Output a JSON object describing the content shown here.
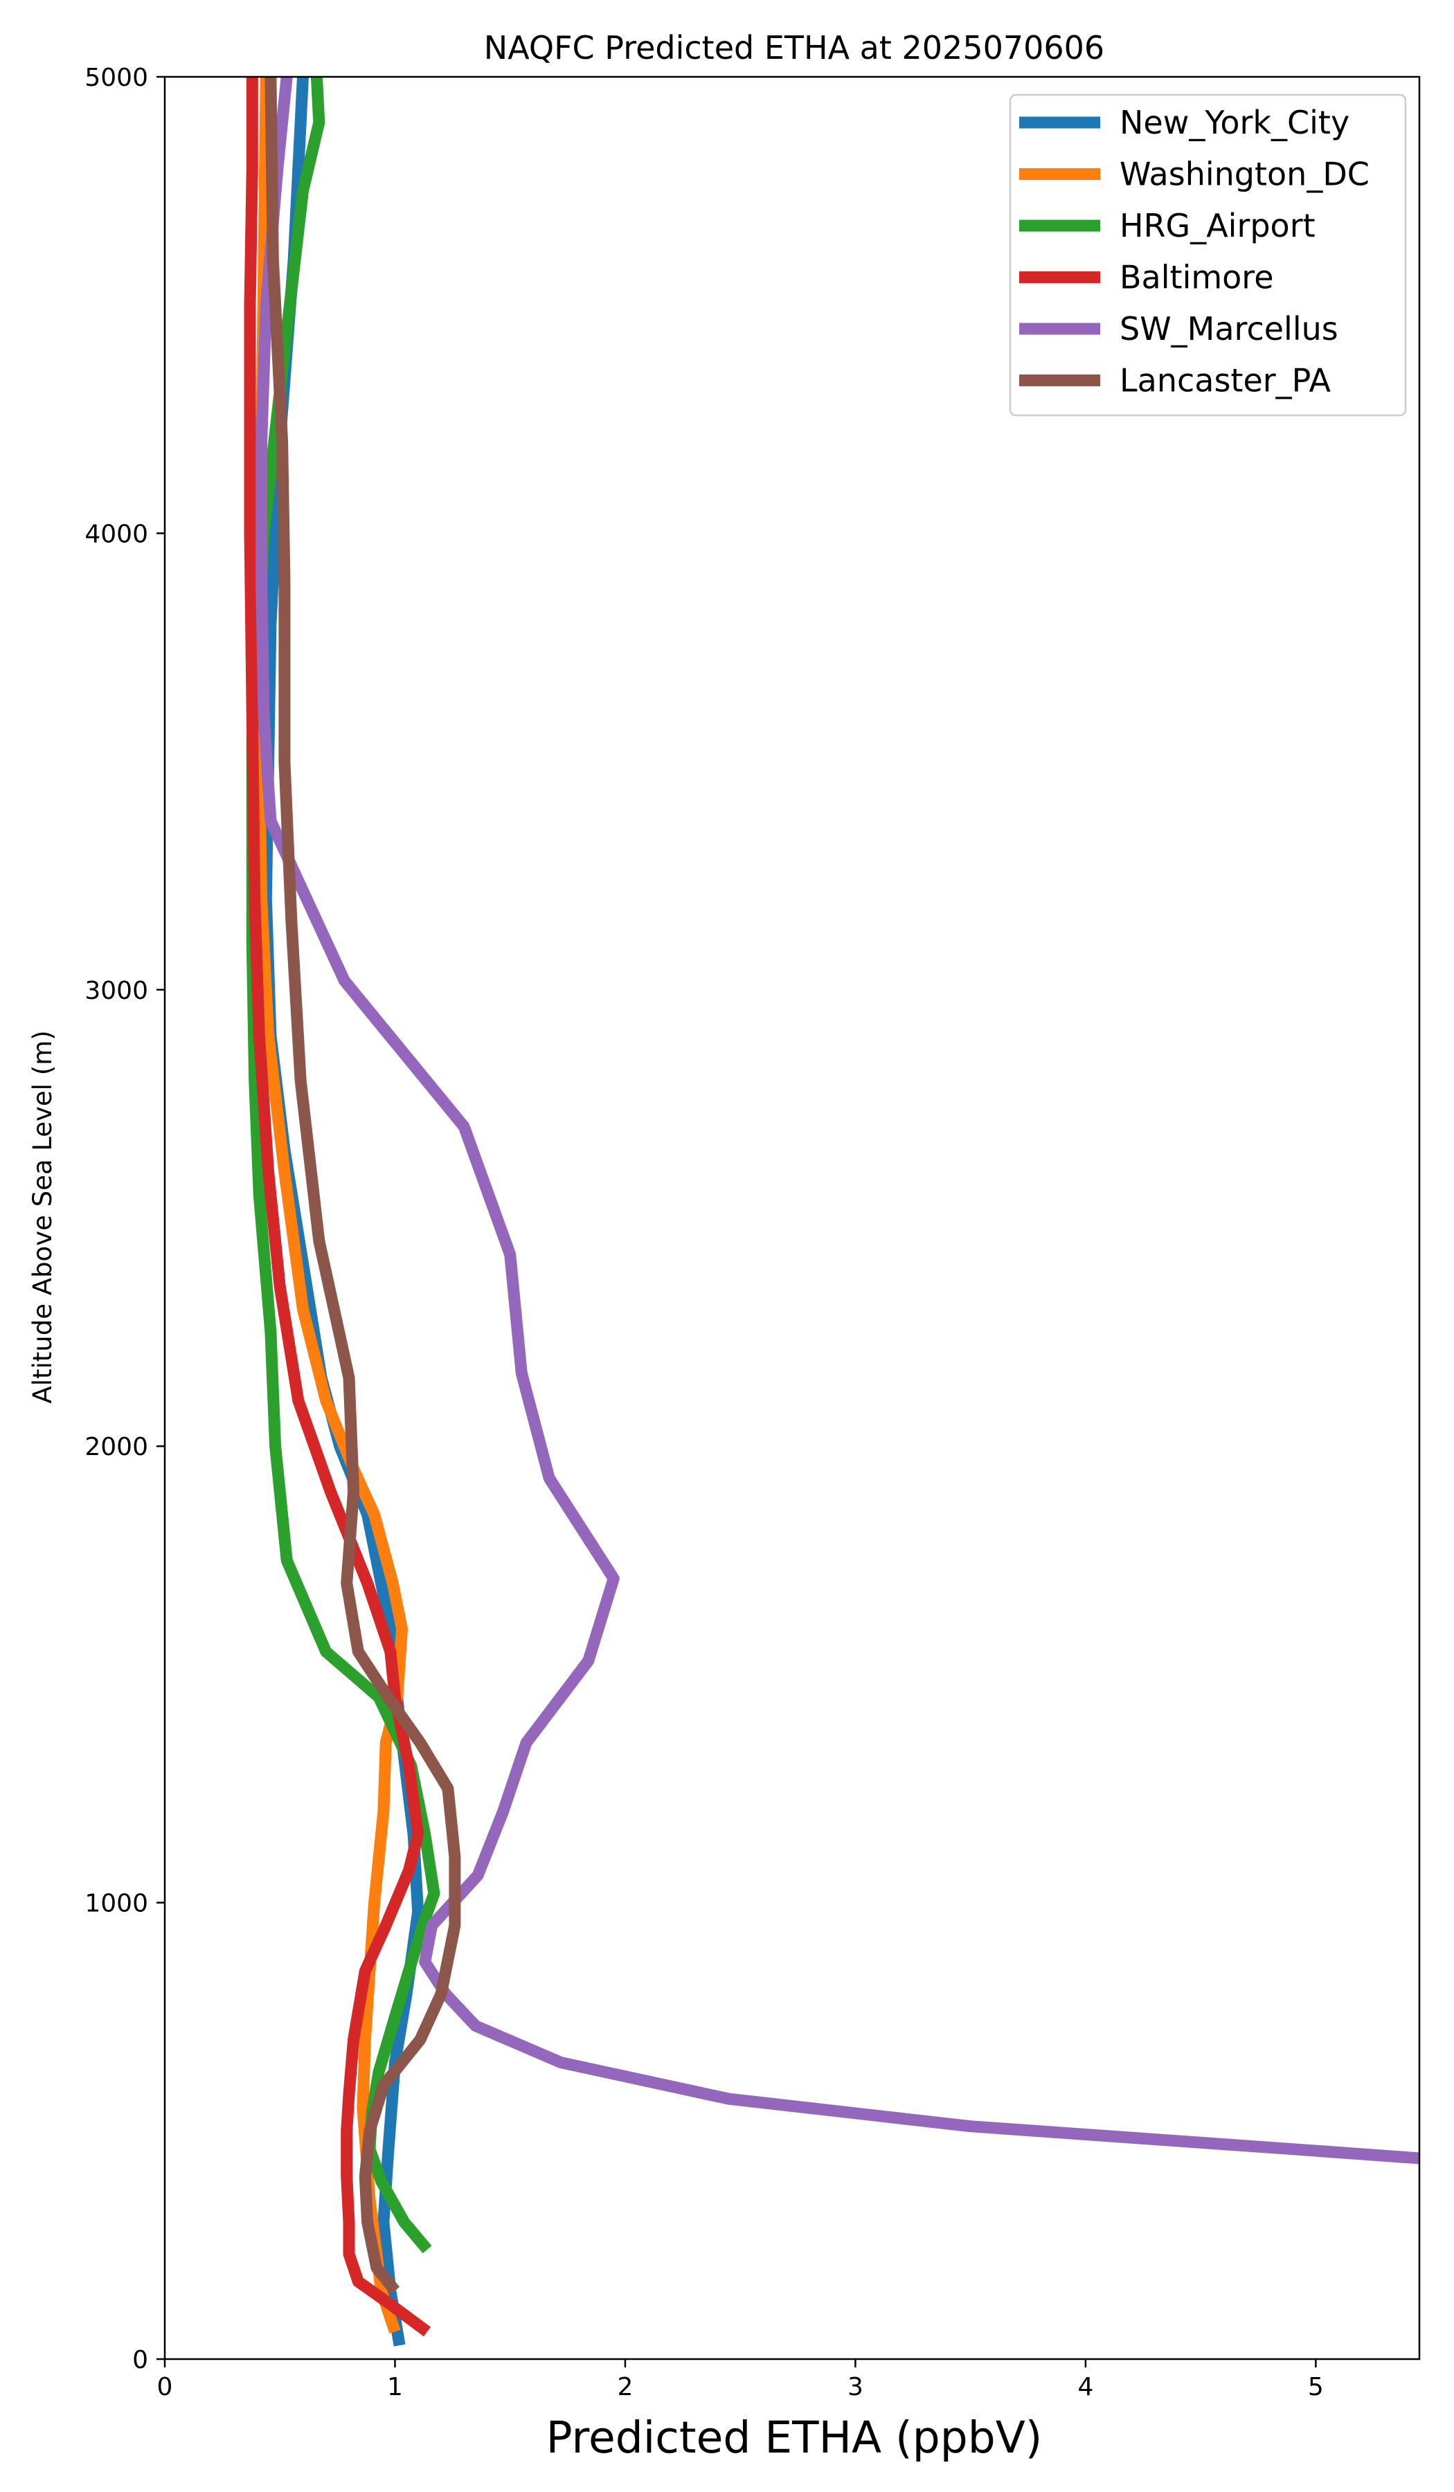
{
  "chart_data": {
    "type": "line",
    "title": "NAQFC Predicted ETHA at 2025070606",
    "xlabel": "Predicted ETHA (ppbV)",
    "ylabel": "Altitude Above Sea Level (m)",
    "xlim": [
      0,
      5.45
    ],
    "ylim": [
      0,
      5000
    ],
    "xticks": [
      0,
      1,
      2,
      3,
      4,
      5
    ],
    "yticks": [
      0,
      1000,
      2000,
      3000,
      4000,
      5000
    ],
    "grid": false,
    "legend_position": "top-right",
    "series": [
      {
        "name": "New_York_City",
        "color": "#1f77b4",
        "points": [
          [
            1.02,
            30
          ],
          [
            0.98,
            150
          ],
          [
            0.95,
            300
          ],
          [
            0.97,
            450
          ],
          [
            1.0,
            650
          ],
          [
            1.05,
            800
          ],
          [
            1.1,
            980
          ],
          [
            1.08,
            1150
          ],
          [
            1.02,
            1400
          ],
          [
            0.98,
            1600
          ],
          [
            0.88,
            1850
          ],
          [
            0.76,
            2000
          ],
          [
            0.68,
            2150
          ],
          [
            0.6,
            2400
          ],
          [
            0.52,
            2650
          ],
          [
            0.46,
            2900
          ],
          [
            0.44,
            3200
          ],
          [
            0.45,
            3500
          ],
          [
            0.46,
            3800
          ],
          [
            0.5,
            4200
          ],
          [
            0.56,
            4600
          ],
          [
            0.6,
            5000
          ]
        ]
      },
      {
        "name": "Washington_DC",
        "color": "#ff7f0e",
        "points": [
          [
            1.0,
            60
          ],
          [
            0.94,
            150
          ],
          [
            0.89,
            350
          ],
          [
            0.86,
            550
          ],
          [
            0.87,
            700
          ],
          [
            0.89,
            850
          ],
          [
            0.91,
            1000
          ],
          [
            0.95,
            1200
          ],
          [
            0.96,
            1350
          ],
          [
            1.01,
            1450
          ],
          [
            1.03,
            1600
          ],
          [
            0.99,
            1700
          ],
          [
            0.91,
            1850
          ],
          [
            0.82,
            1950
          ],
          [
            0.7,
            2100
          ],
          [
            0.6,
            2300
          ],
          [
            0.52,
            2600
          ],
          [
            0.45,
            2900
          ],
          [
            0.42,
            3200
          ],
          [
            0.41,
            3500
          ],
          [
            0.41,
            3800
          ],
          [
            0.42,
            4200
          ],
          [
            0.43,
            4600
          ],
          [
            0.44,
            5000
          ]
        ]
      },
      {
        "name": "HRG_Airport",
        "color": "#2ca02c",
        "points": [
          [
            1.14,
            240
          ],
          [
            1.04,
            300
          ],
          [
            0.94,
            390
          ],
          [
            0.89,
            460
          ],
          [
            0.9,
            540
          ],
          [
            0.93,
            630
          ],
          [
            1.0,
            750
          ],
          [
            1.06,
            850
          ],
          [
            1.12,
            950
          ],
          [
            1.17,
            1020
          ],
          [
            1.13,
            1150
          ],
          [
            1.07,
            1300
          ],
          [
            0.93,
            1450
          ],
          [
            0.7,
            1550
          ],
          [
            0.53,
            1750
          ],
          [
            0.48,
            2000
          ],
          [
            0.46,
            2250
          ],
          [
            0.41,
            2550
          ],
          [
            0.39,
            2800
          ],
          [
            0.38,
            3100
          ],
          [
            0.38,
            3550
          ],
          [
            0.43,
            4000
          ],
          [
            0.52,
            4400
          ],
          [
            0.6,
            4750
          ],
          [
            0.67,
            4900
          ],
          [
            0.66,
            5000
          ]
        ]
      },
      {
        "name": "Baltimore",
        "color": "#d62728",
        "points": [
          [
            1.14,
            60
          ],
          [
            0.98,
            120
          ],
          [
            0.84,
            170
          ],
          [
            0.8,
            230
          ],
          [
            0.8,
            300
          ],
          [
            0.79,
            400
          ],
          [
            0.79,
            500
          ],
          [
            0.8,
            580
          ],
          [
            0.82,
            700
          ],
          [
            0.87,
            850
          ],
          [
            0.96,
            950
          ],
          [
            1.06,
            1070
          ],
          [
            1.1,
            1150
          ],
          [
            1.06,
            1300
          ],
          [
            1.0,
            1450
          ],
          [
            0.98,
            1550
          ],
          [
            0.88,
            1700
          ],
          [
            0.72,
            1900
          ],
          [
            0.58,
            2100
          ],
          [
            0.5,
            2350
          ],
          [
            0.45,
            2600
          ],
          [
            0.41,
            2900
          ],
          [
            0.39,
            3200
          ],
          [
            0.38,
            3600
          ],
          [
            0.37,
            4000
          ],
          [
            0.37,
            4500
          ],
          [
            0.38,
            4800
          ],
          [
            0.38,
            5000
          ]
        ]
      },
      {
        "name": "SW_Marcellus",
        "color": "#9467bd",
        "points": [
          [
            5.45,
            440
          ],
          [
            4.9,
            460
          ],
          [
            3.5,
            510
          ],
          [
            2.45,
            570
          ],
          [
            1.72,
            650
          ],
          [
            1.35,
            730
          ],
          [
            1.22,
            800
          ],
          [
            1.13,
            870
          ],
          [
            1.16,
            950
          ],
          [
            1.36,
            1060
          ],
          [
            1.47,
            1200
          ],
          [
            1.57,
            1350
          ],
          [
            1.84,
            1530
          ],
          [
            1.95,
            1710
          ],
          [
            1.67,
            1930
          ],
          [
            1.55,
            2160
          ],
          [
            1.5,
            2420
          ],
          [
            1.3,
            2700
          ],
          [
            0.78,
            3020
          ],
          [
            0.46,
            3370
          ],
          [
            0.43,
            3600
          ],
          [
            0.42,
            3900
          ],
          [
            0.42,
            4200
          ],
          [
            0.44,
            4500
          ],
          [
            0.49,
            4800
          ],
          [
            0.53,
            5000
          ]
        ]
      },
      {
        "name": "Lancaster_PA",
        "color": "#8c564b",
        "points": [
          [
            1.0,
            150
          ],
          [
            0.92,
            200
          ],
          [
            0.88,
            300
          ],
          [
            0.87,
            400
          ],
          [
            0.89,
            500
          ],
          [
            0.95,
            600
          ],
          [
            1.11,
            700
          ],
          [
            1.2,
            800
          ],
          [
            1.26,
            950
          ],
          [
            1.26,
            1100
          ],
          [
            1.23,
            1250
          ],
          [
            1.11,
            1350
          ],
          [
            0.97,
            1450
          ],
          [
            0.84,
            1550
          ],
          [
            0.79,
            1700
          ],
          [
            0.82,
            1900
          ],
          [
            0.8,
            2150
          ],
          [
            0.67,
            2450
          ],
          [
            0.59,
            2800
          ],
          [
            0.55,
            3150
          ],
          [
            0.52,
            3500
          ],
          [
            0.52,
            3900
          ],
          [
            0.51,
            4200
          ],
          [
            0.47,
            4600
          ],
          [
            0.46,
            5000
          ]
        ]
      }
    ]
  }
}
